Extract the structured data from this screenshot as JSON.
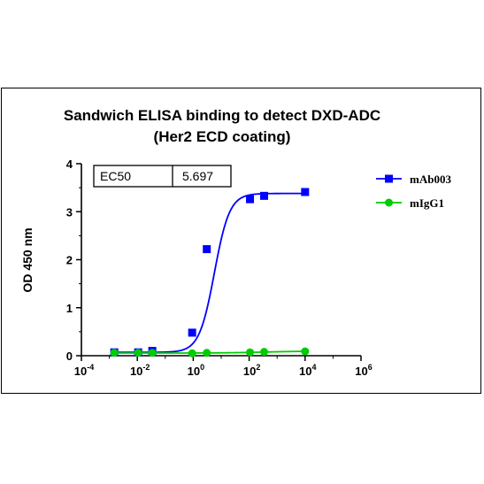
{
  "chart_data": {
    "type": "scatter",
    "title_line1": "Sandwich ELISA binding to detect DXD-ADC",
    "title_line2": "(Her2 ECD coating)",
    "xlabel": "",
    "ylabel": "OD 450 nm",
    "x_scale": "log10",
    "xlim": [
      0.0001,
      1000000
    ],
    "ylim": [
      0,
      4
    ],
    "x_ticks": [
      {
        "base": "10",
        "exp": "-4",
        "value": 0.0001
      },
      {
        "base": "10",
        "exp": "-2",
        "value": 0.01
      },
      {
        "base": "10",
        "exp": "0",
        "value": 1
      },
      {
        "base": "10",
        "exp": "2",
        "value": 100
      },
      {
        "base": "10",
        "exp": "4",
        "value": 10000
      },
      {
        "base": "10",
        "exp": "6",
        "value": 1000000
      }
    ],
    "y_ticks": [
      "0",
      "1",
      "2",
      "3",
      "4"
    ],
    "grid": false,
    "legend_position": "top-right",
    "annotation": {
      "label": "EC50",
      "value": "5.697"
    },
    "series": [
      {
        "name": "mAb003",
        "color": "#0000ff",
        "marker": "square",
        "x": [
          0.0015,
          0.0107,
          0.0343,
          0.914,
          3.05,
          107,
          343,
          10000
        ],
        "y": [
          0.07,
          0.07,
          0.1,
          0.48,
          2.22,
          3.26,
          3.33,
          3.41
        ],
        "fit": {
          "bottom": 0.07,
          "top": 3.38,
          "ec50": 5.697,
          "hill": 1.6
        }
      },
      {
        "name": "mIgG1",
        "color": "#00cc00",
        "marker": "circle",
        "x": [
          0.0015,
          0.0107,
          0.0343,
          0.914,
          3.05,
          107,
          343,
          10000
        ],
        "y": [
          0.06,
          0.06,
          0.06,
          0.05,
          0.06,
          0.07,
          0.08,
          0.09
        ],
        "fit": {
          "bottom": 0.055,
          "top": 0.095,
          "ec50": 300,
          "hill": 0.6
        }
      }
    ]
  }
}
